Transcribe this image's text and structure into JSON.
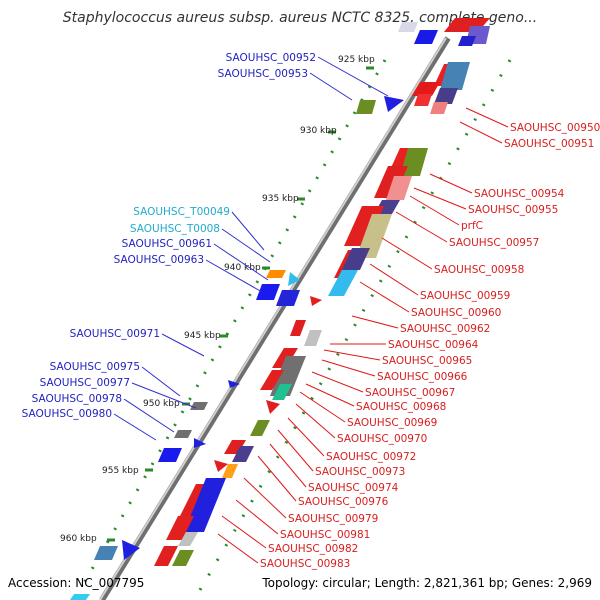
{
  "title": "Staphylococcus aureus subsp. aureus NCTC 8325, complete geno...",
  "footer": {
    "accession": "Accession: NC_007795",
    "summary": "Topology: circular; Length: 2,821,361 bp; Genes: 2,969"
  },
  "colors": {
    "backbone": "#8a8a8a",
    "tick": "#2a8a2a",
    "left_label": "#1f1fbf",
    "left_label_rna": "#22aacc",
    "right_label": "#d81e1e",
    "leader_left": "#3030d0",
    "leader_right": "#e01818"
  },
  "scale_labels": [
    "925 kbp",
    "930 kbp",
    "935 kbp",
    "940 kbp",
    "945 kbp",
    "950 kbp",
    "955 kbp",
    "960 kbp"
  ],
  "left_labels": [
    "SAOUHSC_00952",
    "SAOUHSC_00953",
    "SAOUHSC_T00049",
    "SAOUHSC_T0008",
    "SAOUHSC_00961",
    "SAOUHSC_00963",
    "SAOUHSC_00971",
    "SAOUHSC_00975",
    "SAOUHSC_00977",
    "SAOUHSC_00978",
    "SAOUHSC_00980"
  ],
  "right_labels": [
    "SAOUHSC_00950",
    "SAOUHSC_00951",
    "SAOUHSC_00954",
    "SAOUHSC_00955",
    "prfC",
    "SAOUHSC_00957",
    "SAOUHSC_00958",
    "SAOUHSC_00959",
    "SAOUHSC_00960",
    "SAOUHSC_00962",
    "SAOUHSC_00964",
    "SAOUHSC_00965",
    "SAOUHSC_00966",
    "SAOUHSC_00967",
    "SAOUHSC_00968",
    "SAOUHSC_00969",
    "SAOUHSC_00970",
    "SAOUHSC_00972",
    "SAOUHSC_00973",
    "SAOUHSC_00974",
    "SAOUHSC_00976",
    "SAOUHSC_00979",
    "SAOUHSC_00981",
    "SAOUHSC_00982",
    "SAOUHSC_00983"
  ]
}
